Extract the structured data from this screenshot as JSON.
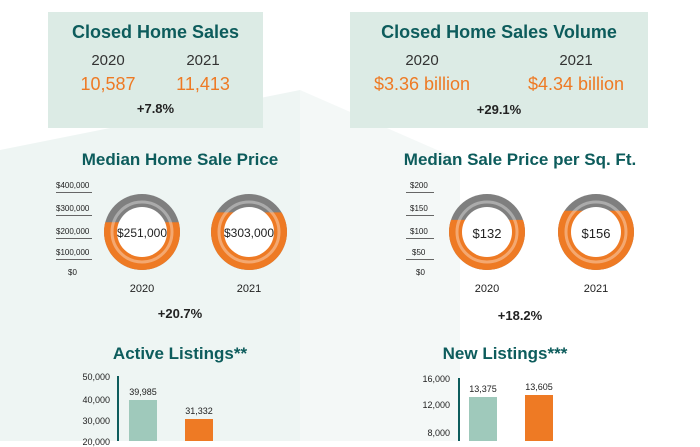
{
  "colors": {
    "teal": "#0d5c5c",
    "orange": "#ee7a24",
    "grey": "#7f7f7f",
    "panel": "#dcebe5",
    "bar_2020": "#9fc9bb",
    "bar_2021": "#ee7a24"
  },
  "closed_sales": {
    "title": "Closed Home Sales",
    "year1": "2020",
    "year2": "2021",
    "value1": "10,587",
    "value2": "11,413",
    "change": "+7.8%"
  },
  "closed_volume": {
    "title": "Closed Home Sales Volume",
    "year1": "2020",
    "year2": "2021",
    "value1": "$3.36 billion",
    "value2": "$4.34 billion",
    "change": "+29.1%"
  },
  "median_price": {
    "title": "Median Home Sale Price",
    "axis": [
      "$400,000",
      "$300,000",
      "$200,000",
      "$100,000",
      "$0"
    ],
    "label1": "$251,000",
    "label2": "$303,000",
    "year1": "2020",
    "year2": "2021",
    "change": "+20.7%"
  },
  "sqft_price": {
    "title": "Median Sale Price per Sq. Ft.",
    "axis": [
      "$200",
      "$150",
      "$100",
      "$50",
      "$0"
    ],
    "label1": "$132",
    "label2": "$156",
    "year1": "2020",
    "year2": "2021",
    "change": "+18.2%"
  },
  "active_listings": {
    "title": "Active Listings**",
    "ticks": [
      "50,000",
      "40,000",
      "30,000",
      "20,000"
    ],
    "label1": "39,985",
    "label2": "31,332"
  },
  "new_listings": {
    "title": "New Listings***",
    "ticks": [
      "16,000",
      "12,000",
      "8,000"
    ],
    "label1": "13,375",
    "label2": "13,605"
  },
  "chart_data": [
    {
      "type": "pie",
      "title": "Median Home Sale Price",
      "categories": [
        "2020",
        "2021"
      ],
      "values": [
        251000,
        303000
      ],
      "ylim": [
        0,
        400000
      ]
    },
    {
      "type": "pie",
      "title": "Median Sale Price per Sq. Ft.",
      "categories": [
        "2020",
        "2021"
      ],
      "values": [
        132,
        156
      ],
      "ylim": [
        0,
        200
      ]
    },
    {
      "type": "bar",
      "title": "Active Listings**",
      "values": [
        39985,
        31332
      ],
      "ylim": [
        0,
        50000
      ]
    },
    {
      "type": "bar",
      "title": "New Listings***",
      "values": [
        13375,
        13605
      ],
      "ylim": [
        0,
        16000
      ]
    }
  ]
}
